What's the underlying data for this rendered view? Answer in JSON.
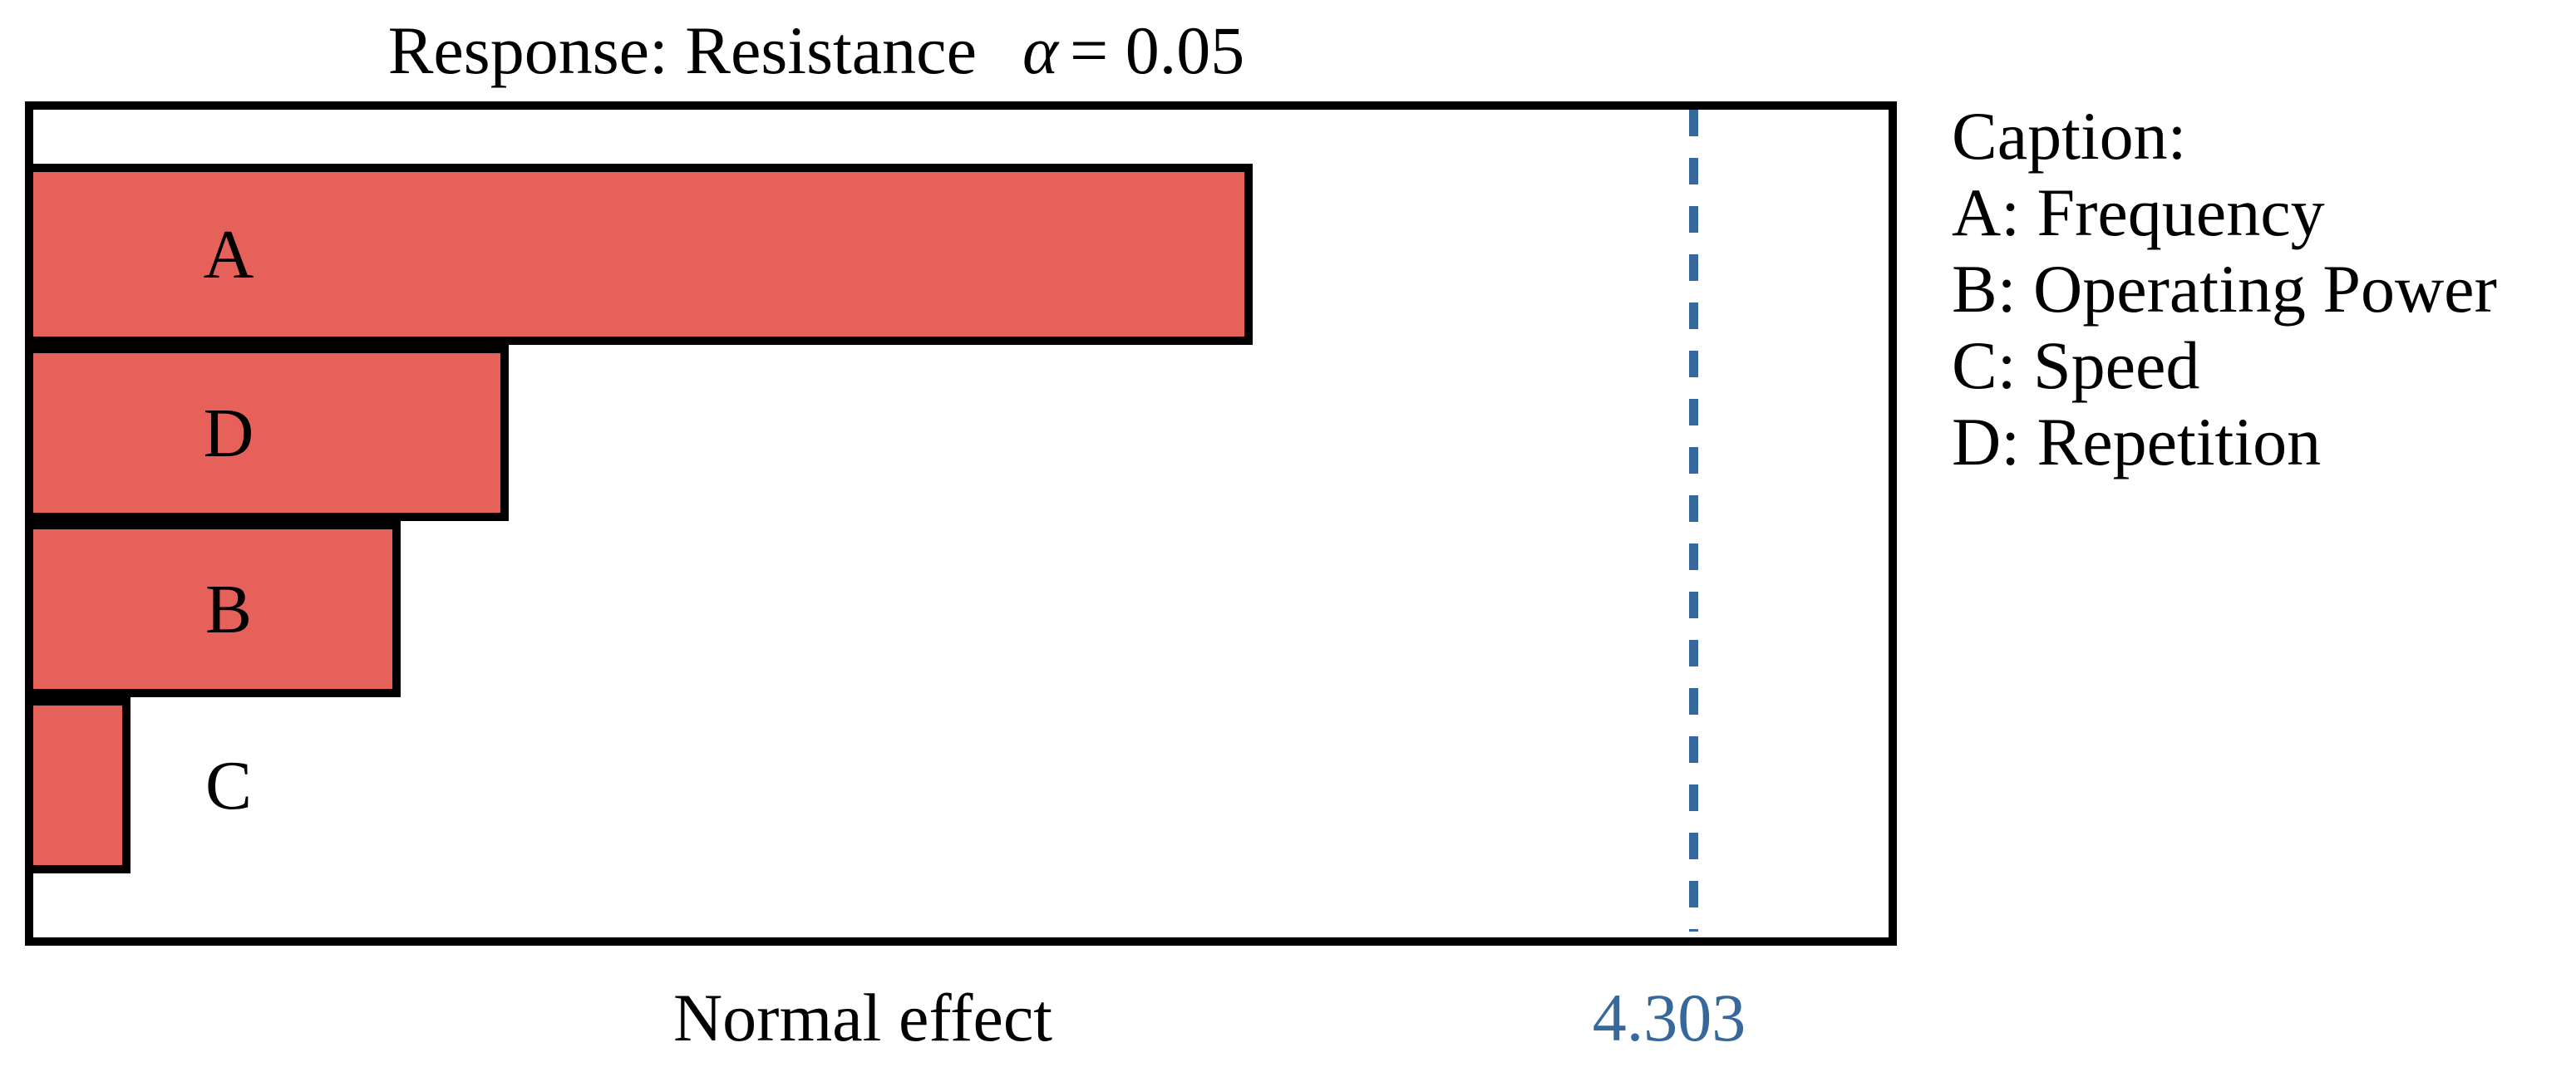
{
  "figure": {
    "title": "Response: Resistance",
    "alpha_symbol": "α",
    "alpha_equation": "= 0.05"
  },
  "x_axis": {
    "label": "Normal effect"
  },
  "threshold": {
    "label": "4.303",
    "value": 4.303
  },
  "bars": [
    {
      "label": "A",
      "factor": "Frequency",
      "value": 3.14
    },
    {
      "label": "D",
      "factor": "Repetition",
      "value": 1.21
    },
    {
      "label": "B",
      "factor": "Operating Power",
      "value": 0.93
    },
    {
      "label": "C",
      "factor": "Speed",
      "value": 0.23
    }
  ],
  "caption": {
    "heading": "Caption:",
    "items": [
      "A: Frequency",
      "B: Operating Power",
      "C: Speed",
      "D: Repetition"
    ]
  },
  "colors": {
    "bar_fill": "#E5615A",
    "border": "#000000",
    "threshold_blue": "#36689B"
  },
  "chart_data": {
    "type": "bar",
    "orientation": "horizontal",
    "title": "Response: Resistance α = 0.05",
    "categories": [
      "A",
      "D",
      "B",
      "C"
    ],
    "category_names": [
      "Frequency",
      "Repetition",
      "Operating Power",
      "Speed"
    ],
    "values": [
      3.14,
      1.21,
      0.93,
      0.23
    ],
    "xlabel": "Normal effect",
    "xlim": [
      0,
      4.81
    ],
    "reference_line": {
      "value": 4.303,
      "label": "4.303",
      "style": "dashed",
      "color": "#36689B"
    },
    "legend_position": "right",
    "grid": false,
    "bar_color": "#E5615A"
  }
}
